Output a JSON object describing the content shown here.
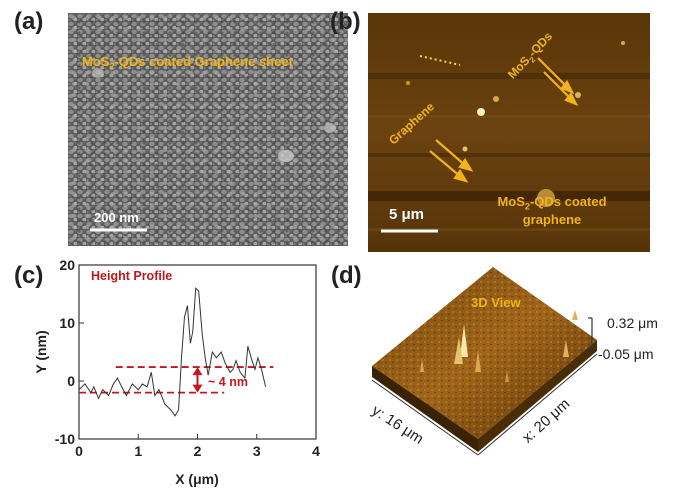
{
  "panels": {
    "a": {
      "label": "(a)",
      "title_prefix": "MoS",
      "title_sub": "2",
      "title_suffix": "-QDs coated Graphene sheet",
      "scale": "200 nm"
    },
    "b": {
      "label": "(b)",
      "qd_prefix": "MoS",
      "qd_sub": "2",
      "qd_suffix": "-QDs",
      "graphene": "Graphene",
      "coated_prefix": "MoS",
      "coated_sub": "2",
      "coated_suffix": "-QDs coated",
      "coated_line2": "graphene",
      "scale": "5 μm"
    },
    "c": {
      "label": "(c)"
    },
    "d": {
      "label": "(d)",
      "view": "3D View",
      "z_max": "0.32 μm",
      "z_min": "-0.05 μm",
      "y_axis": "y: 16 μm",
      "x_axis": "x: 20 μm"
    }
  },
  "colors": {
    "gold": "#f0b418",
    "red": "#c0181c"
  },
  "chart_data": {
    "type": "line",
    "title": "Height Profile",
    "xlabel": "X (μm)",
    "ylabel": "Y (nm)",
    "xlim": [
      0,
      4
    ],
    "ylim": [
      -10,
      20
    ],
    "xticks": [
      "0",
      "1",
      "2",
      "3",
      "4"
    ],
    "yticks": [
      "-10",
      "0",
      "10",
      "20"
    ],
    "annotation": "~ 4 nm",
    "reference_lines": [
      2.4,
      -2.0
    ],
    "series": [
      {
        "name": "Height",
        "x": [
          0.0,
          0.1,
          0.2,
          0.25,
          0.33,
          0.4,
          0.5,
          0.58,
          0.65,
          0.72,
          0.8,
          0.9,
          1.0,
          1.07,
          1.15,
          1.22,
          1.28,
          1.35,
          1.45,
          1.55,
          1.62,
          1.68,
          1.73,
          1.78,
          1.83,
          1.88,
          1.92,
          1.97,
          2.02,
          2.08,
          2.13,
          2.18,
          2.25,
          2.32,
          2.4,
          2.47,
          2.55,
          2.6,
          2.65,
          2.72,
          2.8,
          2.85,
          2.92,
          2.97,
          3.02,
          3.08,
          3.15
        ],
        "y": [
          -1.5,
          -0.5,
          -2.0,
          -1.0,
          -3.0,
          -1.5,
          -2.5,
          -0.5,
          0.5,
          -1.0,
          -2.5,
          -0.5,
          -1.5,
          -0.5,
          -1.0,
          1.5,
          -2.5,
          -1.5,
          -4.0,
          -5.0,
          -6.0,
          -5.0,
          4.0,
          11.0,
          13.0,
          6.5,
          8.5,
          16.0,
          15.5,
          8.0,
          4.0,
          1.0,
          5.0,
          4.0,
          5.0,
          3.0,
          1.5,
          2.0,
          3.5,
          1.5,
          0.5,
          6.0,
          3.5,
          2.0,
          4.0,
          2.0,
          -1.0
        ]
      }
    ]
  }
}
